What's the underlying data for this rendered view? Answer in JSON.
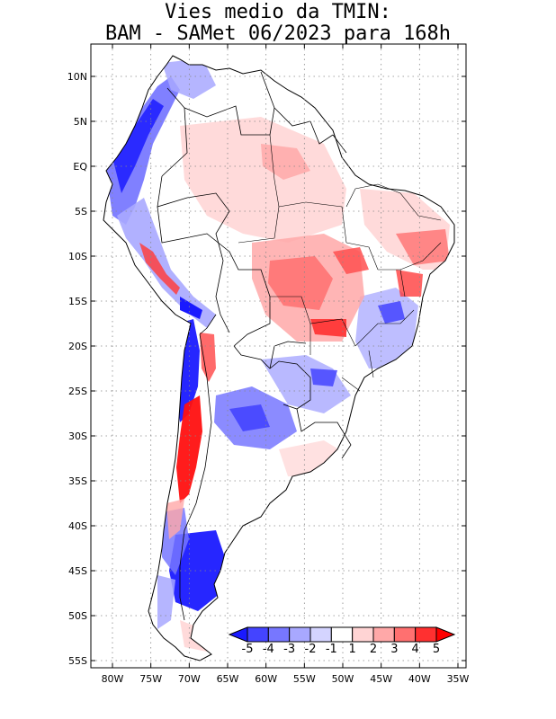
{
  "title": {
    "line1": "Vies medio da TMIN:",
    "line2": "BAM - SAMet 06/2023  para 168h"
  },
  "map": {
    "region": "South America",
    "lat_labels": [
      "10N",
      "5N",
      "EQ",
      "5S",
      "10S",
      "15S",
      "20S",
      "25S",
      "30S",
      "35S",
      "40S",
      "45S",
      "50S",
      "55S"
    ],
    "lon_labels": [
      "80W",
      "75W",
      "70W",
      "65W",
      "60W",
      "55W",
      "50W",
      "45W",
      "40W",
      "35W"
    ],
    "grid": "dotted"
  },
  "colorbar": {
    "labels": [
      "-5",
      "-4",
      "-3",
      "-2",
      "-1",
      "1",
      "2",
      "3",
      "4",
      "5"
    ],
    "colors": [
      "#1a1aff",
      "#4444ff",
      "#7777ff",
      "#a8a8ff",
      "#d4d4ff",
      "#ffffff",
      "#ffd4d4",
      "#ffa8a8",
      "#ff7070",
      "#ff3030",
      "#ff0000"
    ]
  }
}
